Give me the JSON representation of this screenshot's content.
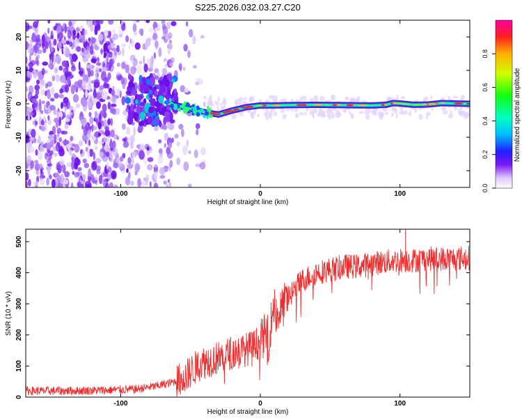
{
  "title": "S225.2026.032.03.27.C20",
  "chart_data": [
    {
      "type": "heatmap",
      "name": "spectrogram",
      "xlabel": "Height of straight line (km)",
      "ylabel": "Frequency (Hz)",
      "xlim": [
        -168,
        150
      ],
      "ylim": [
        -25,
        25
      ],
      "xticks": [
        -100,
        0,
        100
      ],
      "xtick_labels": [
        "-100",
        "0",
        "100"
      ],
      "yticks": [
        -20,
        -10,
        0,
        10,
        20
      ],
      "ytick_labels": [
        "-20",
        "-10",
        "0",
        "10",
        "20"
      ],
      "colorbar": {
        "label": "Normalized spectral amplitude",
        "range": [
          0,
          1
        ],
        "ticks": [
          0.0,
          0.2,
          0.4,
          0.6,
          0.8
        ],
        "tick_labels": [
          "0.0",
          "0.2",
          "0.4",
          "0.6",
          "0.8"
        ]
      },
      "signal_track": {
        "heights_km": [
          -65,
          -60,
          -50,
          -40,
          -30,
          -20,
          -10,
          0,
          10,
          20,
          40,
          60,
          80,
          90,
          95,
          100,
          110,
          120,
          130,
          150
        ],
        "freq_hz": [
          0.0,
          -0.5,
          -1.5,
          -2.5,
          -3.2,
          -2.0,
          -1.0,
          -0.5,
          -0.5,
          -0.4,
          -0.3,
          -0.4,
          -0.5,
          -0.3,
          0.2,
          0.1,
          -0.3,
          -0.2,
          0.2,
          0.0
        ]
      }
    },
    {
      "type": "line",
      "name": "snr",
      "xlabel": "Height of straight line (km)",
      "ylabel": "SNR (10 * v/v)",
      "xlim": [
        -168,
        150
      ],
      "ylim": [
        0,
        540
      ],
      "xticks": [
        -100,
        0,
        100
      ],
      "xtick_labels": [
        "-100",
        "0",
        "100"
      ],
      "yticks": [
        0,
        100,
        200,
        300,
        400,
        500
      ],
      "ytick_labels": [
        "0",
        "100",
        "200",
        "300",
        "400",
        "500"
      ],
      "color": "#ee2a2a",
      "series": [
        {
          "name": "SNR",
          "x": [
            -168,
            -140,
            -110,
            -90,
            -75,
            -65,
            -55,
            -48,
            -42,
            -35,
            -28,
            -20,
            -12,
            -6,
            0,
            4,
            6,
            8,
            10,
            12,
            16,
            20,
            25,
            30,
            40,
            50,
            60,
            70,
            80,
            90,
            100,
            110,
            120,
            130,
            140,
            150
          ],
          "y": [
            20,
            20,
            22,
            25,
            35,
            45,
            60,
            90,
            110,
            120,
            130,
            145,
            150,
            160,
            180,
            205,
            190,
            250,
            300,
            260,
            290,
            320,
            350,
            375,
            400,
            410,
            420,
            420,
            430,
            435,
            440,
            440,
            445,
            445,
            445,
            448
          ]
        }
      ]
    }
  ]
}
